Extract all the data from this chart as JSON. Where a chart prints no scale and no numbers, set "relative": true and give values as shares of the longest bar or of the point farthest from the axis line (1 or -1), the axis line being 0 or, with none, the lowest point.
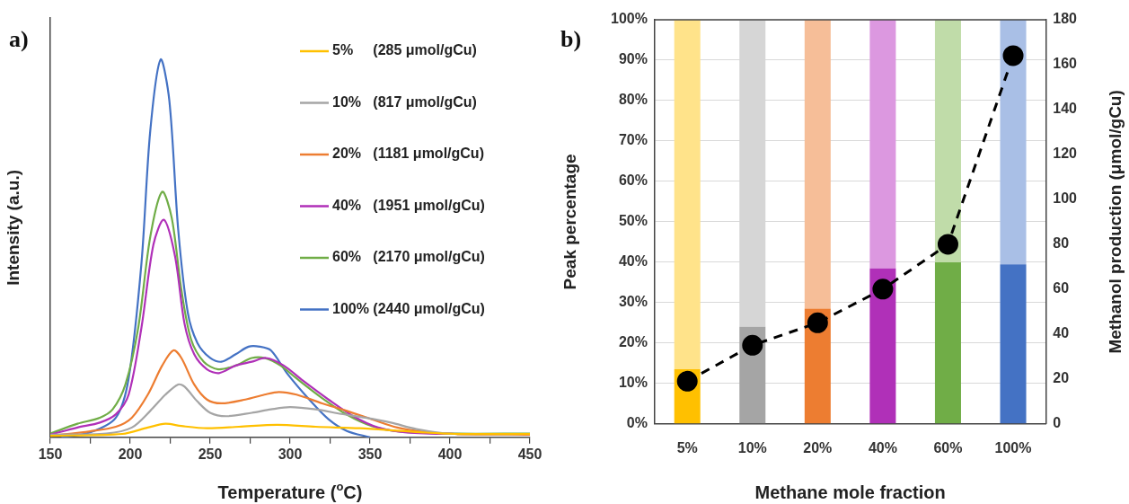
{
  "chart_data": [
    {
      "type": "line",
      "title": "a)",
      "xlabel": "Temperature ($^{o}$C)",
      "ylabel": "Intensity (a.u.)",
      "relative": true,
      "legend": "top right",
      "grid": false,
      "marker": "none",
      "line_style": "solid",
      "xlim": [
        150,
        450
      ],
      "xticks": [
        150,
        {
          "value": 175,
          "label": null
        },
        200,
        {
          "value": 225,
          "label": null
        },
        250,
        {
          "value": 275,
          "label": null
        },
        300,
        {
          "value": 325,
          "label": null
        },
        350,
        {
          "value": 375,
          "label": null
        },
        400,
        {
          "value": 425,
          "label": null
        },
        450
      ],
      "series": [
        {
          "name": "5%     (285 μmol/gCu)",
          "color": "#ffc000",
          "x": [
            150,
            195,
            211,
            222,
            232,
            248,
            268,
            292,
            316,
            343.5,
            363,
            383,
            403,
            450
          ],
          "values": [
            0.004,
            0.009,
            0.026,
            0.036,
            0.03,
            0.024,
            0.028,
            0.033,
            0.028,
            0.024,
            0.019,
            0.013,
            0.009,
            0.009
          ]
        },
        {
          "name": "10%   (817 μmol/gCu)",
          "color": "#a5a5a5",
          "x": [
            150,
            185,
            201,
            212.5,
            222,
            230,
            234,
            242,
            250,
            260,
            276,
            288,
            300,
            316,
            332,
            347,
            363,
            379,
            399,
            450
          ],
          "values": [
            0.007,
            0.01,
            0.026,
            0.07,
            0.113,
            0.14,
            0.134,
            0.095,
            0.065,
            0.056,
            0.065,
            0.074,
            0.08,
            0.074,
            0.062,
            0.052,
            0.039,
            0.022,
            0.01,
            0.009
          ]
        },
        {
          "name": "20%   (1181 μmol/gCu)",
          "color": "#ed7d31",
          "x": [
            150,
            175,
            191,
            201,
            211,
            220,
            227,
            232,
            240,
            248,
            257,
            272,
            284,
            293,
            304,
            320,
            335.5,
            351,
            367,
            383,
            403,
            450
          ],
          "values": [
            0.004,
            0.016,
            0.028,
            0.052,
            0.113,
            0.19,
            0.23,
            0.21,
            0.14,
            0.1,
            0.09,
            0.1,
            0.113,
            0.12,
            0.113,
            0.09,
            0.07,
            0.048,
            0.026,
            0.015,
            0.009,
            0.007
          ]
        },
        {
          "name": "40%   (1951 μmol/gCu)",
          "color": "#b030b8",
          "x": [
            150,
            167,
            181,
            191,
            199,
            207,
            214.5,
            221,
            228,
            234,
            240,
            248,
            255.5,
            266,
            276,
            285,
            296,
            308,
            324,
            339.5,
            355,
            373,
            403,
            450
          ],
          "values": [
            0.007,
            0.026,
            0.039,
            0.061,
            0.113,
            0.29,
            0.51,
            0.576,
            0.48,
            0.3,
            0.22,
            0.18,
            0.17,
            0.19,
            0.2,
            0.21,
            0.19,
            0.15,
            0.1,
            0.056,
            0.026,
            0.013,
            0.009,
            0.009
          ]
        },
        {
          "name": "60%   (2170 μmol/gCu)",
          "color": "#70ad47",
          "x": [
            150,
            167,
            181,
            189,
            197,
            205,
            212.5,
            220,
            226,
            232,
            238,
            246,
            255,
            266,
            276,
            284,
            294,
            304,
            320,
            335.5,
            351,
            369,
            399,
            450
          ],
          "values": [
            0.01,
            0.036,
            0.052,
            0.074,
            0.14,
            0.29,
            0.53,
            0.65,
            0.58,
            0.39,
            0.26,
            0.2,
            0.18,
            0.19,
            0.21,
            0.21,
            0.19,
            0.156,
            0.104,
            0.06,
            0.03,
            0.015,
            0.01,
            0.01
          ]
        },
        {
          "name": "100% (2440 μmol/gCu)",
          "color": "#4472c4",
          "x": [
            157,
            175,
            191,
            199,
            207,
            212.5,
            219,
            224.5,
            230,
            236,
            242,
            250,
            257,
            266,
            274,
            281,
            288,
            298,
            312,
            324,
            335.5,
            350
          ],
          "values": [
            0,
            0.013,
            0.052,
            0.156,
            0.46,
            0.81,
            1.0,
            0.89,
            0.55,
            0.33,
            0.25,
            0.21,
            0.2,
            0.22,
            0.24,
            0.24,
            0.23,
            0.17,
            0.1,
            0.048,
            0.017,
            0
          ]
        }
      ]
    },
    {
      "type": "bar",
      "title": "b)",
      "xlabel": "Methane mole fraction",
      "ylabel": "Peak percentage",
      "y2label": "Methanol production (μmol/gCu)",
      "stacked": true,
      "grid": "y",
      "legend": false,
      "categories": [
        "5%",
        "10%",
        "20%",
        "40%",
        "60%",
        "100%"
      ],
      "ylim": [
        0,
        100
      ],
      "yticks": [
        {
          "value": 0,
          "label": "0%"
        },
        {
          "value": 10,
          "label": "10%"
        },
        {
          "value": 20,
          "label": "20%"
        },
        {
          "value": 30,
          "label": "30%"
        },
        {
          "value": 40,
          "label": "40%"
        },
        {
          "value": 50,
          "label": "50%"
        },
        {
          "value": 60,
          "label": "60%"
        },
        {
          "value": 70,
          "label": "70%"
        },
        {
          "value": 80,
          "label": "80%"
        },
        {
          "value": 90,
          "label": "90%"
        },
        {
          "value": 100,
          "label": "100%"
        }
      ],
      "y2lim": [
        0,
        180
      ],
      "y2ticks": [
        0,
        20,
        40,
        60,
        80,
        100,
        120,
        140,
        160,
        180
      ],
      "series": [
        {
          "colors": [
            "#ffc000",
            "#a5a5a5",
            "#ed7d31",
            "#b030b8",
            "#70ad47",
            "#4472c4"
          ],
          "values": [
            13.5,
            24,
            28.5,
            38.5,
            40,
            39.5
          ]
        },
        {
          "colors": [
            "#ffe38a",
            "#d6d6d6",
            "#f6be98",
            "#dc98e0",
            "#c0dca9",
            "#a9bfe6"
          ],
          "values": [
            86.5,
            76,
            71.5,
            61.5,
            60,
            60.5
          ]
        },
        {
          "type": "line",
          "axis": "y2",
          "color": "#000000",
          "marker": "circle",
          "line_style": "dashed",
          "values": [
            19,
            35,
            45,
            60,
            80,
            164
          ]
        }
      ]
    }
  ]
}
